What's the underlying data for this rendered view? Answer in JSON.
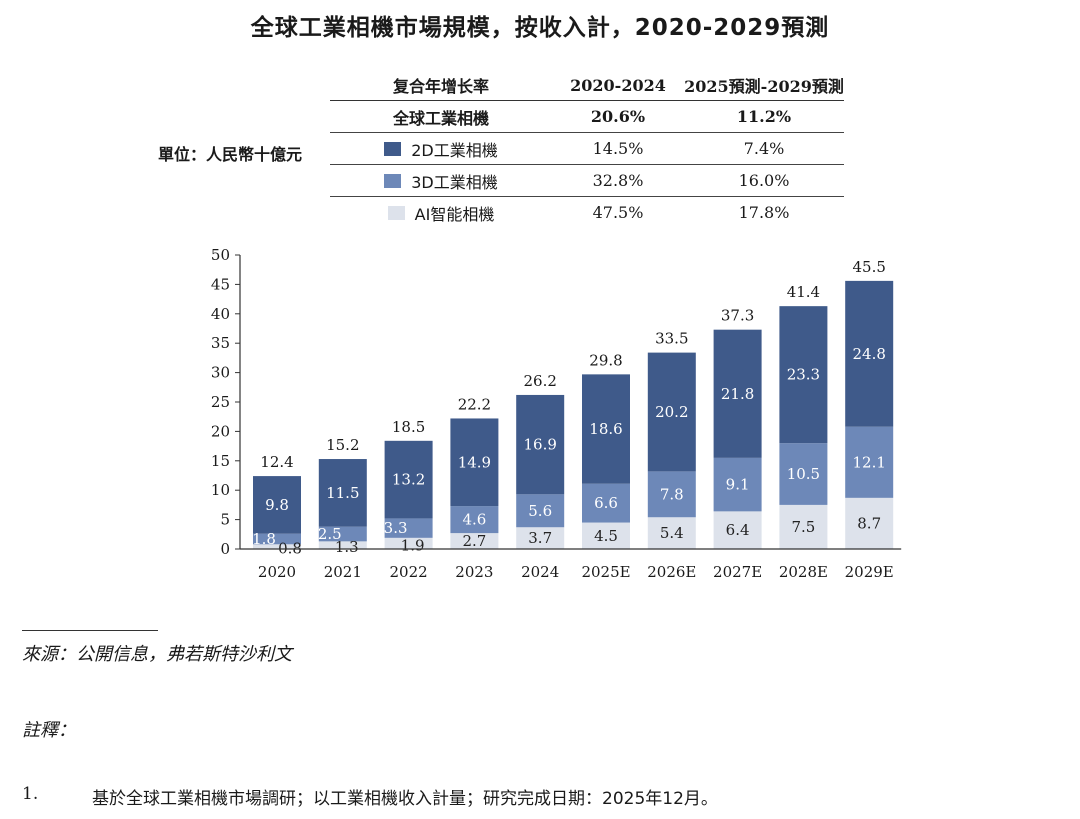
{
  "title": "全球工業相機市場規模，按收入計，2020-2029預測",
  "unit_label": "單位：人民幣十億元",
  "cagr_table": {
    "header": [
      "复合年增长率",
      "2020-2024",
      "2025預測-2029預測"
    ],
    "total": {
      "label": "全球工業相機",
      "v1": "20.6%",
      "v2": "11.2%"
    },
    "rows": [
      {
        "label": "2D工業相機",
        "v1": "14.5%",
        "v2": "7.4%",
        "color": "#3f5a8a"
      },
      {
        "label": "3D工業相機",
        "v1": "32.8%",
        "v2": "16.0%",
        "color": "#6d88b8"
      },
      {
        "label": "AI智能相機",
        "v1": "47.5%",
        "v2": "17.8%",
        "color": "#dde2eb"
      }
    ]
  },
  "chart_data": {
    "type": "bar",
    "stacked": true,
    "categories": [
      "2020",
      "2021",
      "2022",
      "2023",
      "2024",
      "2025E",
      "2026E",
      "2027E",
      "2028E",
      "2029E"
    ],
    "series": [
      {
        "name": "AI智能相機",
        "color": "#dde2eb",
        "text_color": "#222222",
        "values": [
          0.8,
          1.3,
          1.9,
          2.7,
          3.7,
          4.5,
          5.4,
          6.4,
          7.5,
          8.7
        ],
        "labels": [
          "0.8",
          "1.3",
          "1.9",
          "2.7",
          "3.7",
          "4.5",
          "5.4",
          "6.4",
          "7.5",
          "8.7"
        ]
      },
      {
        "name": "3D工業相機",
        "color": "#6d88b8",
        "text_color": "#ffffff",
        "values": [
          1.8,
          2.5,
          3.3,
          4.6,
          5.6,
          6.6,
          7.8,
          9.1,
          10.5,
          12.1
        ],
        "labels": [
          "1.8",
          "2.5",
          "3.3",
          "4.6",
          "5.6",
          "6.6",
          "7.8",
          "9.1",
          "10.5",
          "12.1"
        ]
      },
      {
        "name": "2D工業相機",
        "color": "#3f5a8a",
        "text_color": "#ffffff",
        "values": [
          9.8,
          11.5,
          13.2,
          14.9,
          16.9,
          18.6,
          20.2,
          21.8,
          23.3,
          24.8
        ],
        "labels": [
          "9.8",
          "11.5",
          "13.2",
          "14.9",
          "16.9",
          "18.6",
          "20.2",
          "21.8",
          "23.3",
          "24.8"
        ]
      }
    ],
    "totals": [
      "12.4",
      "15.2",
      "18.5",
      "22.2",
      "26.2",
      "29.8",
      "33.5",
      "37.3",
      "41.4",
      "45.5"
    ],
    "ylim": [
      0,
      50
    ],
    "yticks": [
      "0",
      "5",
      "10",
      "15",
      "20",
      "25",
      "30",
      "35",
      "40",
      "45",
      "50"
    ],
    "xlabel": "",
    "ylabel": ""
  },
  "source": "來源：公開信息，弗若斯特沙利文",
  "notes_heading": "註釋：",
  "notes": [
    {
      "num": "1.",
      "text": "基於全球工業相機市場調研；以工業相機收入計量；研究完成日期：2025年12月。"
    }
  ]
}
